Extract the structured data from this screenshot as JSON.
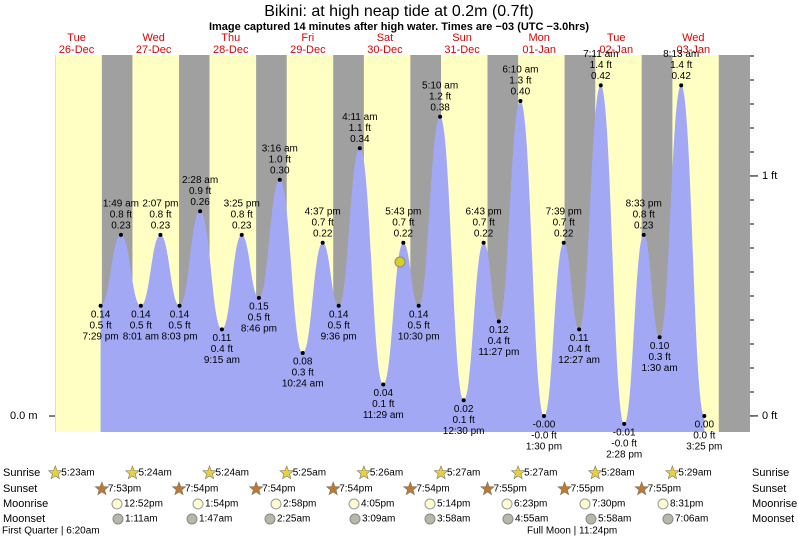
{
  "chart_data": {
    "type": "tide",
    "title": "Bikini: at high  neap tide at 0.2m (0.7ft)",
    "subtitle": "Image captured 14 minutes after high water. Times are −03 (UTC −3.0hrs)",
    "days": [
      {
        "dow": "Tue",
        "date": "26-Dec"
      },
      {
        "dow": "Wed",
        "date": "27-Dec"
      },
      {
        "dow": "Thu",
        "date": "28-Dec"
      },
      {
        "dow": "Fri",
        "date": "29-Dec"
      },
      {
        "dow": "Sat",
        "date": "30-Dec"
      },
      {
        "dow": "Sun",
        "date": "31-Dec"
      },
      {
        "dow": "Mon",
        "date": "01-Jan"
      },
      {
        "dow": "Tue",
        "date": "02-Jan"
      },
      {
        "dow": "Wed",
        "date": "03-Jan"
      }
    ],
    "ylim": [
      -0.0203,
      0.4585
    ],
    "yticks": [
      {
        "value": 0,
        "label": "0.0 m"
      }
    ],
    "y2lim": [
      -0.067,
      1.504
    ],
    "y2ticks": [
      {
        "value": 0,
        "label": "0 ft"
      },
      {
        "value": 1,
        "label": "1 ft"
      }
    ],
    "tides": [
      {
        "time": "7:29 pm",
        "ft": "0.5 ft",
        "m": 0.14
      },
      {
        "time": "1:49 am",
        "ft": "0.8 ft",
        "m": 0.23
      },
      {
        "time": "8:01 am",
        "ft": "0.5 ft",
        "m": 0.14
      },
      {
        "time": "2:07 pm",
        "ft": "0.8 ft",
        "m": 0.23
      },
      {
        "time": "8:03 pm",
        "ft": "0.5 ft",
        "m": 0.14
      },
      {
        "time": "2:28 am",
        "ft": "0.9 ft",
        "m": 0.26
      },
      {
        "time": "9:15 am",
        "ft": "0.4 ft",
        "m": 0.11
      },
      {
        "time": "3:25 pm",
        "ft": "0.8 ft",
        "m": 0.23
      },
      {
        "time": "8:46 pm",
        "ft": "0.5 ft",
        "m": 0.15
      },
      {
        "time": "3:16 am",
        "ft": "1.0 ft",
        "m": 0.3,
        "m_label": "0.30"
      },
      {
        "time": "10:24 am",
        "ft": "0.3 ft",
        "m": 0.08
      },
      {
        "time": "4:37 pm",
        "ft": "0.7 ft",
        "m": 0.22
      },
      {
        "time": "9:36 pm",
        "ft": "0.5 ft",
        "m": 0.14
      },
      {
        "time": "4:11 am",
        "ft": "1.1 ft",
        "m": 0.34
      },
      {
        "time": "11:29 am",
        "ft": "0.1 ft",
        "m": 0.04
      },
      {
        "time": "5:43 pm",
        "ft": "0.7 ft",
        "m": 0.22
      },
      {
        "time": "10:30 pm",
        "ft": "0.5 ft",
        "m": 0.14
      },
      {
        "time": "5:10 am",
        "ft": "1.2 ft",
        "m": 0.38
      },
      {
        "time": "12:30 pm",
        "ft": "0.1 ft",
        "m": 0.02
      },
      {
        "time": "6:43 pm",
        "ft": "0.7 ft",
        "m": 0.22
      },
      {
        "time": "11:27 pm",
        "ft": "0.4 ft",
        "m": 0.12
      },
      {
        "time": "6:10 am",
        "ft": "1.3 ft",
        "m": 0.4,
        "m_label": "0.40"
      },
      {
        "time": "1:30 pm",
        "ft": "-0.0 ft",
        "m": 0,
        "m_label": "-0.00"
      },
      {
        "time": "7:39 pm",
        "ft": "0.7 ft",
        "m": 0.22
      },
      {
        "time": "12:27 am",
        "ft": "0.4 ft",
        "m": 0.11
      },
      {
        "time": "7:11 am",
        "ft": "1.4 ft",
        "m": 0.42
      },
      {
        "time": "2:28 pm",
        "ft": "-0.0 ft",
        "m": -0.01
      },
      {
        "time": "8:33 pm",
        "ft": "0.8 ft",
        "m": 0.23
      },
      {
        "time": "1:30 am",
        "ft": "0.3 ft",
        "m": 0.1,
        "m_label": "0.10"
      },
      {
        "time": "8:13 am",
        "ft": "1.4 ft",
        "m": 0.42
      },
      {
        "time": "3:25 pm",
        "ft": "0.0 ft",
        "m": 0,
        "m_label": "0.00"
      }
    ],
    "row_labels": [
      "Sunrise",
      "Sunset",
      "Moonrise",
      "Moonset"
    ],
    "sunrise": [
      "5:23am",
      "5:24am",
      "5:24am",
      "5:25am",
      "5:26am",
      "5:27am",
      "5:27am",
      "5:28am",
      "5:29am"
    ],
    "sunset": [
      "7:53pm",
      "7:54pm",
      "7:54pm",
      "7:54pm",
      "7:54pm",
      "7:55pm",
      "7:55pm",
      "7:55pm"
    ],
    "moonrise": [
      "12:52pm",
      "1:54pm",
      "2:58pm",
      "4:05pm",
      "5:14pm",
      "6:23pm",
      "7:30pm",
      "8:31pm"
    ],
    "moonset": [
      "1:11am",
      "1:47am",
      "2:25am",
      "3:09am",
      "3:58am",
      "4:55am",
      "5:58am",
      "7:06am"
    ],
    "moon_phases": [
      "First Quarter | 6:20am",
      "Full Moon | 11:24pm"
    ]
  }
}
